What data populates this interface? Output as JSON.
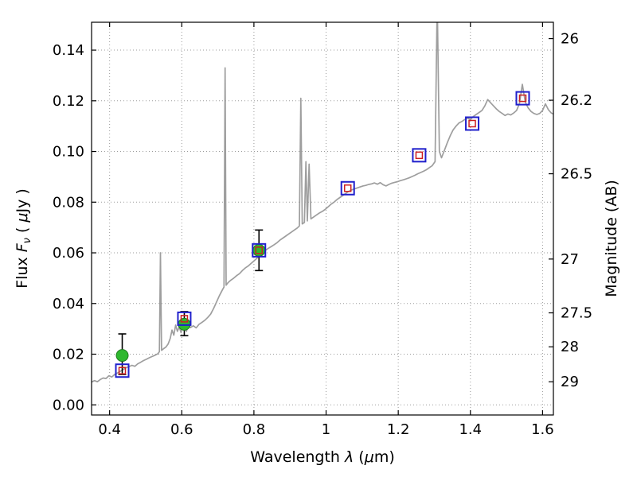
{
  "figure": {
    "background": "#ffffff"
  },
  "chart_data": {
    "type": "line+scatter",
    "title": "",
    "xlabel": "Wavelength λ (μm)",
    "ylabel": "Flux Fν ( μJy )",
    "ylabel_right": "Magnitude (AB)",
    "xlabel_parts": [
      {
        "t": "Wavelength  "
      },
      {
        "t": "λ",
        "italic": true
      },
      {
        "t": " ("
      },
      {
        "t": "μ",
        "italic": true
      },
      {
        "t": "m)"
      }
    ],
    "ylabel_parts": [
      {
        "t": "Flux  "
      },
      {
        "t": "F",
        "italic": true
      },
      {
        "t": "ν",
        "italic": true,
        "sub": true
      },
      {
        "t": "  ( "
      },
      {
        "t": "μ",
        "italic": true
      },
      {
        "t": "Jy )"
      }
    ],
    "xlim": [
      0.35,
      1.63
    ],
    "ylim": [
      -0.004,
      0.151
    ],
    "grid": true,
    "legend": null,
    "xticks": [
      0.4,
      0.6,
      0.8,
      1.0,
      1.2,
      1.4,
      1.6
    ],
    "xtick_labels": [
      "0.4",
      "0.6",
      "0.8",
      "1",
      "1.2",
      "1.4",
      "1.6"
    ],
    "yticks": [
      0.0,
      0.02,
      0.04,
      0.06,
      0.08,
      0.1,
      0.12,
      0.14
    ],
    "ytick_labels": [
      "0.00",
      "0.02",
      "0.04",
      "0.06",
      "0.08",
      "0.10",
      "0.12",
      "0.14"
    ],
    "right_axis": {
      "label": "Magnitude (AB)",
      "tick_values_mag": [
        26,
        26.2,
        26.5,
        27,
        27.5,
        28,
        29
      ],
      "tick_labels": [
        "26",
        "26.2",
        "26.5",
        "27",
        "27.5",
        "28",
        "29"
      ],
      "ab_zp": 23.9
    },
    "colors": {
      "spectrum": "#9e9e9e",
      "grid": "#9b9b9b",
      "observed_fill": "#2eb82e",
      "observed_edge": "#1f7a1f",
      "errorbar": "#000000",
      "model_square": "#2020cc",
      "model_inner": "#cc2020",
      "axis": "#000000"
    },
    "series": [
      {
        "name": "model-spectrum",
        "type": "line",
        "points": [
          [
            0.35,
            0.009
          ],
          [
            0.358,
            0.0096
          ],
          [
            0.366,
            0.0091
          ],
          [
            0.374,
            0.01
          ],
          [
            0.382,
            0.0106
          ],
          [
            0.39,
            0.0104
          ],
          [
            0.398,
            0.0115
          ],
          [
            0.406,
            0.011
          ],
          [
            0.414,
            0.012
          ],
          [
            0.422,
            0.0126
          ],
          [
            0.43,
            0.0133
          ],
          [
            0.438,
            0.014
          ],
          [
            0.446,
            0.0147
          ],
          [
            0.454,
            0.0151
          ],
          [
            0.462,
            0.0156
          ],
          [
            0.47,
            0.0152
          ],
          [
            0.478,
            0.0162
          ],
          [
            0.486,
            0.0168
          ],
          [
            0.494,
            0.0175
          ],
          [
            0.502,
            0.018
          ],
          [
            0.51,
            0.0186
          ],
          [
            0.518,
            0.0191
          ],
          [
            0.526,
            0.0196
          ],
          [
            0.534,
            0.0202
          ],
          [
            0.538,
            0.021
          ],
          [
            0.541,
            0.06
          ],
          [
            0.544,
            0.0215
          ],
          [
            0.55,
            0.0222
          ],
          [
            0.556,
            0.0228
          ],
          [
            0.562,
            0.024
          ],
          [
            0.568,
            0.0262
          ],
          [
            0.573,
            0.0295
          ],
          [
            0.578,
            0.0275
          ],
          [
            0.583,
            0.0315
          ],
          [
            0.588,
            0.029
          ],
          [
            0.593,
            0.0308
          ],
          [
            0.598,
            0.0285
          ],
          [
            0.603,
            0.0325
          ],
          [
            0.608,
            0.0305
          ],
          [
            0.613,
            0.029
          ],
          [
            0.618,
            0.0315
          ],
          [
            0.624,
            0.0305
          ],
          [
            0.632,
            0.0312
          ],
          [
            0.64,
            0.0304
          ],
          [
            0.648,
            0.0318
          ],
          [
            0.656,
            0.0326
          ],
          [
            0.664,
            0.0334
          ],
          [
            0.672,
            0.0345
          ],
          [
            0.68,
            0.0358
          ],
          [
            0.688,
            0.038
          ],
          [
            0.696,
            0.0405
          ],
          [
            0.704,
            0.043
          ],
          [
            0.712,
            0.0452
          ],
          [
            0.717,
            0.0465
          ],
          [
            0.72,
            0.133
          ],
          [
            0.723,
            0.0472
          ],
          [
            0.728,
            0.0482
          ],
          [
            0.736,
            0.0492
          ],
          [
            0.744,
            0.05
          ],
          [
            0.752,
            0.051
          ],
          [
            0.76,
            0.0518
          ],
          [
            0.768,
            0.053
          ],
          [
            0.776,
            0.054
          ],
          [
            0.784,
            0.0548
          ],
          [
            0.792,
            0.0558
          ],
          [
            0.8,
            0.0568
          ],
          [
            0.808,
            0.0578
          ],
          [
            0.816,
            0.059
          ],
          [
            0.824,
            0.06
          ],
          [
            0.832,
            0.061
          ],
          [
            0.84,
            0.0618
          ],
          [
            0.848,
            0.0625
          ],
          [
            0.856,
            0.0632
          ],
          [
            0.864,
            0.064
          ],
          [
            0.872,
            0.065
          ],
          [
            0.88,
            0.0658
          ],
          [
            0.888,
            0.0666
          ],
          [
            0.896,
            0.0674
          ],
          [
            0.904,
            0.0682
          ],
          [
            0.912,
            0.069
          ],
          [
            0.92,
            0.0698
          ],
          [
            0.926,
            0.0706
          ],
          [
            0.93,
            0.121
          ],
          [
            0.934,
            0.0714
          ],
          [
            0.94,
            0.072
          ],
          [
            0.944,
            0.096
          ],
          [
            0.948,
            0.0726
          ],
          [
            0.953,
            0.095
          ],
          [
            0.958,
            0.0734
          ],
          [
            0.966,
            0.0742
          ],
          [
            0.974,
            0.075
          ],
          [
            0.982,
            0.0758
          ],
          [
            0.99,
            0.0764
          ],
          [
            0.998,
            0.0772
          ],
          [
            1.006,
            0.0782
          ],
          [
            1.014,
            0.0792
          ],
          [
            1.022,
            0.08
          ],
          [
            1.03,
            0.081
          ],
          [
            1.038,
            0.0818
          ],
          [
            1.046,
            0.0826
          ],
          [
            1.054,
            0.0834
          ],
          [
            1.062,
            0.0842
          ],
          [
            1.07,
            0.0848
          ],
          [
            1.078,
            0.0852
          ],
          [
            1.086,
            0.0856
          ],
          [
            1.094,
            0.086
          ],
          [
            1.102,
            0.0864
          ],
          [
            1.11,
            0.0866
          ],
          [
            1.118,
            0.087
          ],
          [
            1.126,
            0.0872
          ],
          [
            1.134,
            0.0876
          ],
          [
            1.142,
            0.0871
          ],
          [
            1.15,
            0.0877
          ],
          [
            1.158,
            0.0869
          ],
          [
            1.166,
            0.0864
          ],
          [
            1.174,
            0.087
          ],
          [
            1.182,
            0.0875
          ],
          [
            1.19,
            0.0878
          ],
          [
            1.198,
            0.0881
          ],
          [
            1.206,
            0.0885
          ],
          [
            1.214,
            0.0888
          ],
          [
            1.222,
            0.0892
          ],
          [
            1.23,
            0.0896
          ],
          [
            1.238,
            0.0901
          ],
          [
            1.246,
            0.0906
          ],
          [
            1.254,
            0.0912
          ],
          [
            1.262,
            0.0917
          ],
          [
            1.27,
            0.0922
          ],
          [
            1.278,
            0.0928
          ],
          [
            1.286,
            0.0936
          ],
          [
            1.294,
            0.0944
          ],
          [
            1.302,
            0.096
          ],
          [
            1.308,
            0.16
          ],
          [
            1.314,
            0.1
          ],
          [
            1.32,
            0.0975
          ],
          [
            1.328,
            0.1005
          ],
          [
            1.336,
            0.1035
          ],
          [
            1.344,
            0.1062
          ],
          [
            1.352,
            0.1085
          ],
          [
            1.36,
            0.11
          ],
          [
            1.368,
            0.1112
          ],
          [
            1.376,
            0.1118
          ],
          [
            1.384,
            0.1126
          ],
          [
            1.392,
            0.1132
          ],
          [
            1.4,
            0.1126
          ],
          [
            1.408,
            0.1138
          ],
          [
            1.416,
            0.1146
          ],
          [
            1.424,
            0.1154
          ],
          [
            1.432,
            0.1162
          ],
          [
            1.44,
            0.118
          ],
          [
            1.448,
            0.1205
          ],
          [
            1.456,
            0.1192
          ],
          [
            1.464,
            0.118
          ],
          [
            1.472,
            0.1168
          ],
          [
            1.48,
            0.1158
          ],
          [
            1.488,
            0.115
          ],
          [
            1.496,
            0.1142
          ],
          [
            1.504,
            0.1148
          ],
          [
            1.512,
            0.1144
          ],
          [
            1.52,
            0.1152
          ],
          [
            1.528,
            0.1162
          ],
          [
            1.536,
            0.119
          ],
          [
            1.544,
            0.1265
          ],
          [
            1.552,
            0.1195
          ],
          [
            1.56,
            0.1172
          ],
          [
            1.568,
            0.1158
          ],
          [
            1.576,
            0.115
          ],
          [
            1.584,
            0.1146
          ],
          [
            1.592,
            0.115
          ],
          [
            1.6,
            0.1162
          ],
          [
            1.608,
            0.1188
          ],
          [
            1.616,
            0.1165
          ],
          [
            1.624,
            0.1152
          ],
          [
            1.63,
            0.1148
          ]
        ]
      },
      {
        "name": "observed-photometry",
        "type": "scatter",
        "marker": "circle",
        "points": [
          {
            "x": 0.435,
            "y": 0.0195,
            "yerr_lo": 0.0075,
            "yerr_hi": 0.0085
          },
          {
            "x": 0.607,
            "y": 0.0318,
            "yerr_lo": 0.0045,
            "yerr_hi": 0.005
          },
          {
            "x": 0.814,
            "y": 0.061,
            "yerr_lo": 0.008,
            "yerr_hi": 0.008
          }
        ]
      },
      {
        "name": "model-photometry",
        "type": "scatter",
        "marker": "open-square-with-red-inner",
        "points": [
          {
            "x": 0.435,
            "y": 0.0135
          },
          {
            "x": 0.607,
            "y": 0.034
          },
          {
            "x": 0.814,
            "y": 0.061
          },
          {
            "x": 1.06,
            "y": 0.0855
          },
          {
            "x": 1.258,
            "y": 0.0985
          },
          {
            "x": 1.405,
            "y": 0.111
          },
          {
            "x": 1.545,
            "y": 0.121
          }
        ]
      }
    ]
  }
}
